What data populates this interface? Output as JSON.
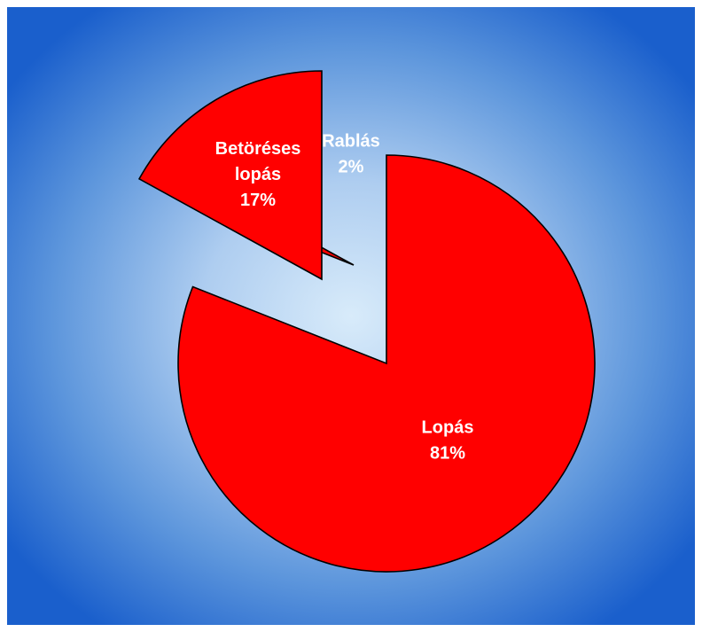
{
  "chart_data": {
    "type": "pie",
    "slices": [
      {
        "name": "Lopás",
        "percent_label": "81%",
        "value": 81
      },
      {
        "name": "Rablás",
        "percent_label": "2%",
        "value": 2
      },
      {
        "name": "Betöréses lopás",
        "name_lines": [
          "Betöréses",
          "lopás"
        ],
        "percent_label": "17%",
        "value": 17
      }
    ],
    "start_angle_deg": 0,
    "direction": "clockwise",
    "exploded": true,
    "legend": "none"
  },
  "colors": {
    "slice_fill": "#ff0000",
    "slice_stroke": "#000000",
    "label_text": "#ffffff",
    "background_edge": "#1a5fcc",
    "background_center": "#d8ebfa"
  }
}
